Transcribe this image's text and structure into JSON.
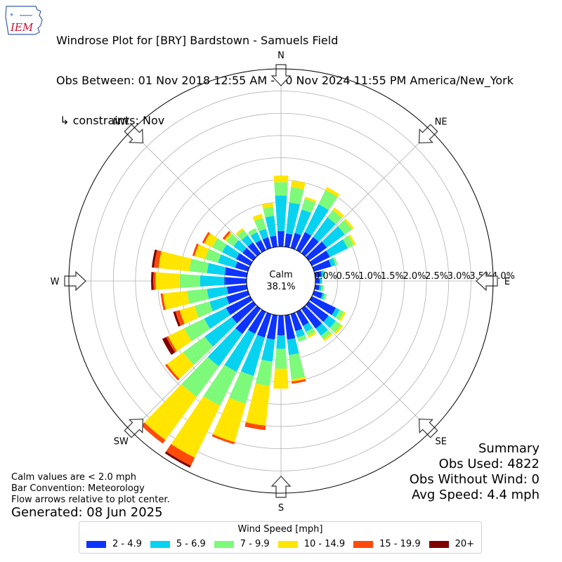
{
  "header": {
    "logo_text": "IEM",
    "title_line1": "Windrose Plot for [BRY] Bardstown - Samuels Field",
    "title_line2": "Obs Between: 01 Nov 2018 12:55 AM - 30 Nov 2024 11:55 PM America/New_York",
    "title_line3": " ↳ constraints: Nov"
  },
  "center": {
    "label": "Calm",
    "value": "38.1%"
  },
  "summary": {
    "title": "Summary",
    "obs_used": "Obs Used: 4822",
    "obs_without_wind": "Obs Without Wind: 0",
    "avg_speed": "Avg Speed: 4.4 mph"
  },
  "notes": {
    "line1": "Calm values are < 2.0 mph",
    "line2": "Bar Convention: Meteorology",
    "line3": "Flow arrows relative to plot center.",
    "generated": "Generated: 08 Jun 2025"
  },
  "legend": {
    "title": "Wind Speed [mph]",
    "items": [
      {
        "label": "2 - 4.9",
        "color": "#0d33ff"
      },
      {
        "label": "5 - 6.9",
        "color": "#07d3f0"
      },
      {
        "label": "7 - 9.9",
        "color": "#7dfa7a"
      },
      {
        "label": "10 - 14.9",
        "color": "#ffe500"
      },
      {
        "label": "15 - 19.9",
        "color": "#ff4a0a"
      },
      {
        "label": "20+",
        "color": "#800000"
      }
    ]
  },
  "chart_data": {
    "type": "windrose",
    "directions": [
      "N",
      "NE",
      "E",
      "SE",
      "S",
      "SW",
      "W",
      "NW"
    ],
    "sector_count": 36,
    "sector_width_deg": 10,
    "r_tick_labels": [
      "0.0%",
      "0.5%",
      "1.0%",
      "1.5%",
      "2.0%",
      "2.5%",
      "3.0%",
      "3.5%",
      "4.0%"
    ],
    "r_max_percent": 4.0,
    "calm_percent": 38.1,
    "speed_bins": [
      "2 - 4.9",
      "5 - 6.9",
      "7 - 9.9",
      "10 - 14.9",
      "15 - 19.9",
      "20+"
    ],
    "bin_colors": [
      "#0d33ff",
      "#07d3f0",
      "#7dfa7a",
      "#ffe500",
      "#ff4a0a",
      "#800000"
    ],
    "sectors": [
      {
        "dir": 0,
        "values": [
          0.35,
          0.8,
          0.3,
          0.15,
          0.0,
          0.0
        ]
      },
      {
        "dir": 10,
        "values": [
          0.3,
          0.7,
          0.35,
          0.15,
          0.0,
          0.0
        ]
      },
      {
        "dir": 20,
        "values": [
          0.35,
          0.55,
          0.25,
          0.05,
          0.0,
          0.0
        ]
      },
      {
        "dir": 30,
        "values": [
          0.45,
          0.7,
          0.35,
          0.08,
          0.0,
          0.0
        ]
      },
      {
        "dir": 40,
        "values": [
          0.45,
          0.55,
          0.2,
          0.07,
          0.0,
          0.0
        ]
      },
      {
        "dir": 50,
        "values": [
          0.5,
          0.5,
          0.2,
          0.05,
          0.0,
          0.0
        ]
      },
      {
        "dir": 60,
        "values": [
          0.45,
          0.45,
          0.15,
          0.05,
          0.0,
          0.0
        ]
      },
      {
        "dir": 70,
        "values": [
          0.4,
          0.1,
          0.05,
          0.0,
          0.0,
          0.0
        ]
      },
      {
        "dir": 80,
        "values": [
          0.15,
          0.05,
          0.03,
          0.0,
          0.0,
          0.0
        ]
      },
      {
        "dir": 90,
        "values": [
          0.1,
          0.05,
          0.0,
          0.0,
          0.0,
          0.0
        ]
      },
      {
        "dir": 100,
        "values": [
          0.1,
          0.05,
          0.05,
          0.0,
          0.0,
          0.0
        ]
      },
      {
        "dir": 110,
        "values": [
          0.2,
          0.05,
          0.05,
          0.0,
          0.0,
          0.0
        ]
      },
      {
        "dir": 120,
        "values": [
          0.6,
          0.1,
          0.1,
          0.05,
          0.0,
          0.0
        ]
      },
      {
        "dir": 130,
        "values": [
          0.55,
          0.2,
          0.15,
          0.05,
          0.0,
          0.0
        ]
      },
      {
        "dir": 140,
        "values": [
          0.55,
          0.2,
          0.1,
          0.05,
          0.0,
          0.0
        ]
      },
      {
        "dir": 150,
        "values": [
          0.35,
          0.15,
          0.1,
          0.05,
          0.0,
          0.0
        ]
      },
      {
        "dir": 160,
        "values": [
          0.4,
          0.15,
          0.1,
          0.0,
          0.0,
          0.0
        ]
      },
      {
        "dir": 170,
        "values": [
          0.55,
          0.35,
          0.55,
          0.05,
          0.05,
          0.0
        ]
      },
      {
        "dir": 180,
        "values": [
          0.45,
          0.3,
          0.45,
          0.45,
          0.0,
          0.0
        ]
      },
      {
        "dir": 190,
        "values": [
          0.55,
          0.5,
          0.55,
          0.9,
          0.1,
          0.0
        ]
      },
      {
        "dir": 200,
        "values": [
          0.55,
          0.9,
          0.65,
          0.9,
          0.05,
          0.0
        ]
      },
      {
        "dir": 210,
        "values": [
          0.55,
          0.95,
          0.85,
          1.3,
          0.2,
          0.05
        ]
      },
      {
        "dir": 220,
        "values": [
          0.7,
          0.9,
          0.85,
          1.2,
          0.1,
          0.0
        ]
      },
      {
        "dir": 230,
        "values": [
          0.6,
          0.75,
          0.6,
          0.45,
          0.05,
          0.0
        ]
      },
      {
        "dir": 240,
        "values": [
          0.6,
          0.55,
          0.5,
          0.4,
          0.05,
          0.1
        ]
      },
      {
        "dir": 250,
        "values": [
          0.5,
          0.4,
          0.35,
          0.35,
          0.1,
          0.05
        ]
      },
      {
        "dir": 260,
        "values": [
          0.45,
          0.45,
          0.45,
          0.55,
          0.05,
          0.0
        ]
      },
      {
        "dir": 270,
        "values": [
          0.5,
          0.55,
          0.45,
          0.55,
          0.05,
          0.05
        ]
      },
      {
        "dir": 280,
        "values": [
          0.5,
          0.4,
          0.4,
          0.7,
          0.1,
          0.05
        ]
      },
      {
        "dir": 290,
        "values": [
          0.3,
          0.4,
          0.3,
          0.25,
          0.05,
          0.0
        ]
      },
      {
        "dir": 300,
        "values": [
          0.35,
          0.35,
          0.25,
          0.2,
          0.05,
          0.0
        ]
      },
      {
        "dir": 310,
        "values": [
          0.3,
          0.25,
          0.2,
          0.05,
          0.05,
          0.0
        ]
      },
      {
        "dir": 320,
        "values": [
          0.3,
          0.2,
          0.15,
          0.05,
          0.0,
          0.0
        ]
      },
      {
        "dir": 330,
        "values": [
          0.25,
          0.2,
          0.1,
          0.0,
          0.0,
          0.0
        ]
      },
      {
        "dir": 340,
        "values": [
          0.25,
          0.2,
          0.25,
          0.1,
          0.0,
          0.0
        ]
      },
      {
        "dir": 350,
        "values": [
          0.25,
          0.45,
          0.2,
          0.1,
          0.0,
          0.0
        ]
      }
    ]
  }
}
